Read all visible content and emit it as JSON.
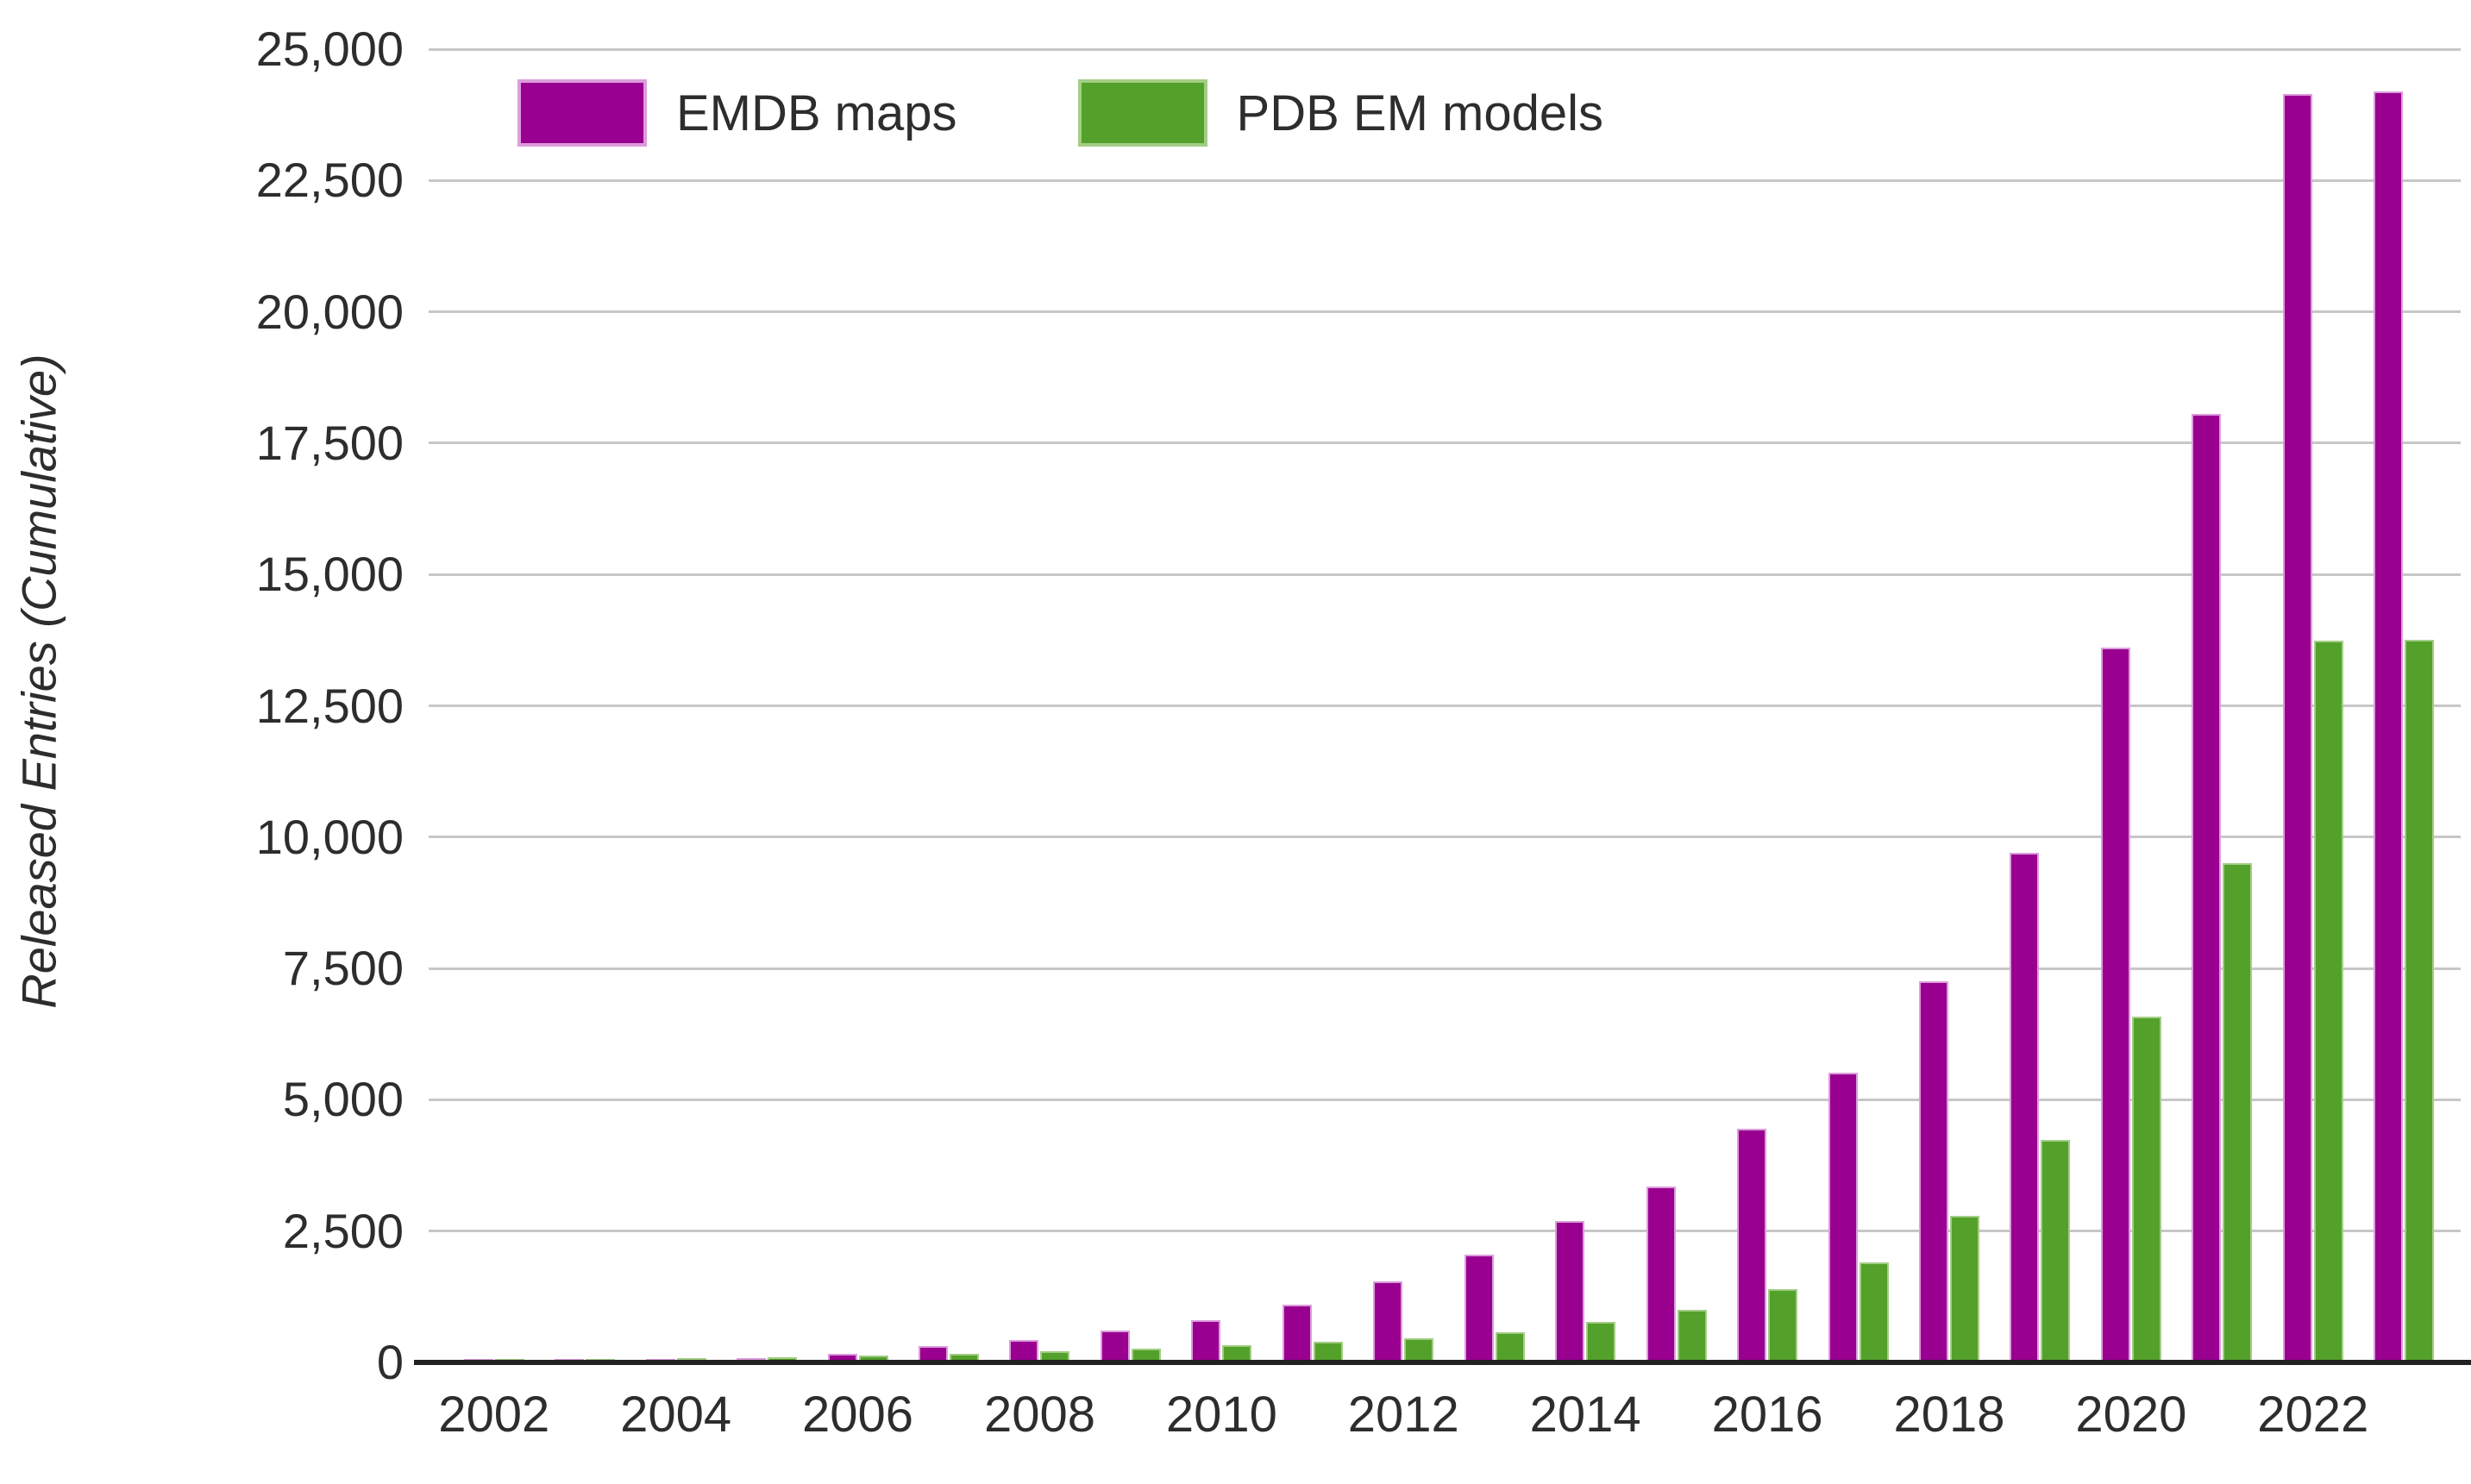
{
  "chart_data": {
    "type": "bar",
    "title": "",
    "xlabel": "",
    "ylabel": "Released Entries (Cumulative)",
    "ylim": [
      0,
      25000
    ],
    "ytick_step": 2500,
    "ytick_labels": [
      "0",
      "2,500",
      "5,000",
      "7,500",
      "10,000",
      "12,500",
      "15,000",
      "17,500",
      "20,000",
      "22,500",
      "25,000"
    ],
    "xtick_labels": [
      "2002",
      "2004",
      "2006",
      "2008",
      "2010",
      "2012",
      "2014",
      "2016",
      "2018",
      "2020",
      "2022"
    ],
    "categories": [
      "2002",
      "2003",
      "2004",
      "2005",
      "2006",
      "2007",
      "2008",
      "2009",
      "2010",
      "2011",
      "2012",
      "2013",
      "2014",
      "2015",
      "2016",
      "2017",
      "2018",
      "2019",
      "2020",
      "2021",
      "2022",
      "2023"
    ],
    "grid": "horizontal",
    "legend_position": "top-left-inside",
    "series": [
      {
        "name": "EMDB maps",
        "color": "#990090",
        "border_color": "#dc9ddc",
        "values": [
          10,
          30,
          50,
          90,
          160,
          310,
          430,
          600,
          800,
          1100,
          1550,
          2050,
          2700,
          3350,
          4450,
          5520,
          7250,
          9700,
          13600,
          18050,
          24150,
          24200
        ]
      },
      {
        "name": "PDB EM models",
        "color": "#53a02a",
        "border_color": "#a3cd85",
        "values": [
          45,
          60,
          75,
          105,
          130,
          160,
          215,
          270,
          330,
          390,
          465,
          570,
          775,
          1000,
          1400,
          1900,
          2790,
          4240,
          6580,
          9500,
          13740,
          13760
        ]
      }
    ]
  },
  "style": {
    "gridline_color": "#c7c7c7",
    "axis_line_color": "#212121",
    "text_color": "#2d2d2d",
    "background": "#ffffff"
  }
}
